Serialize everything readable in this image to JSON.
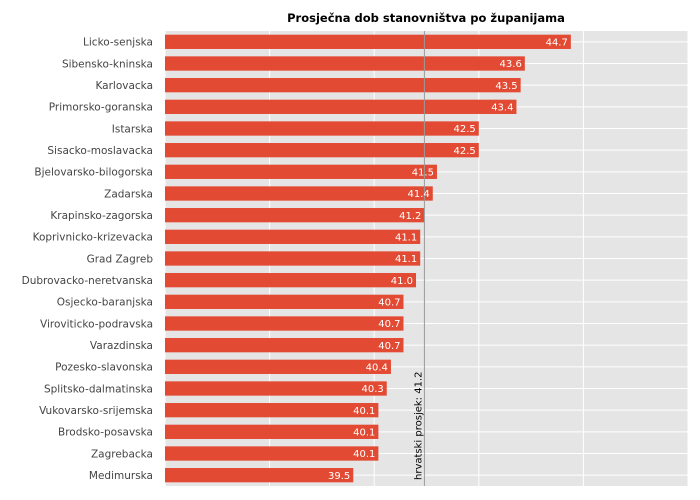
{
  "chart_data": {
    "type": "bar",
    "orientation": "horizontal",
    "title": "Prosječna dob stanovništva po županijama",
    "xlabel": "",
    "ylabel": "",
    "xlim": [
      35,
      47.5
    ],
    "grid": true,
    "bar_color": "#e34a33",
    "background": "#e5e5e5",
    "grid_color": "#ffffff",
    "categories": [
      "Licko-senjska",
      "Sibensko-kninska",
      "Karlovacka",
      "Primorsko-goranska",
      "Istarska",
      "Sisacko-moslavacka",
      "Bjelovarsko-bilogorska",
      "Zadarska",
      "Krapinsko-zagorska",
      "Koprivnicko-krizevacka",
      "Grad Zagreb",
      "Dubrovacko-neretvanska",
      "Osjecko-baranjska",
      "Viroviticko-podravska",
      "Varazdinska",
      "Pozesko-slavonska",
      "Splitsko-dalmatinska",
      "Vukovarsko-srijemska",
      "Brodsko-posavska",
      "Zagrebacka",
      "Medimurska"
    ],
    "values": [
      44.7,
      43.6,
      43.5,
      43.4,
      42.5,
      42.5,
      41.5,
      41.4,
      41.2,
      41.1,
      41.1,
      41.0,
      40.7,
      40.7,
      40.7,
      40.4,
      40.3,
      40.1,
      40.1,
      40.1,
      39.5
    ],
    "reference_line": {
      "value": 41.2,
      "label": "hrvatski prosjek:  41.2",
      "color": "#9a9a9a"
    }
  }
}
